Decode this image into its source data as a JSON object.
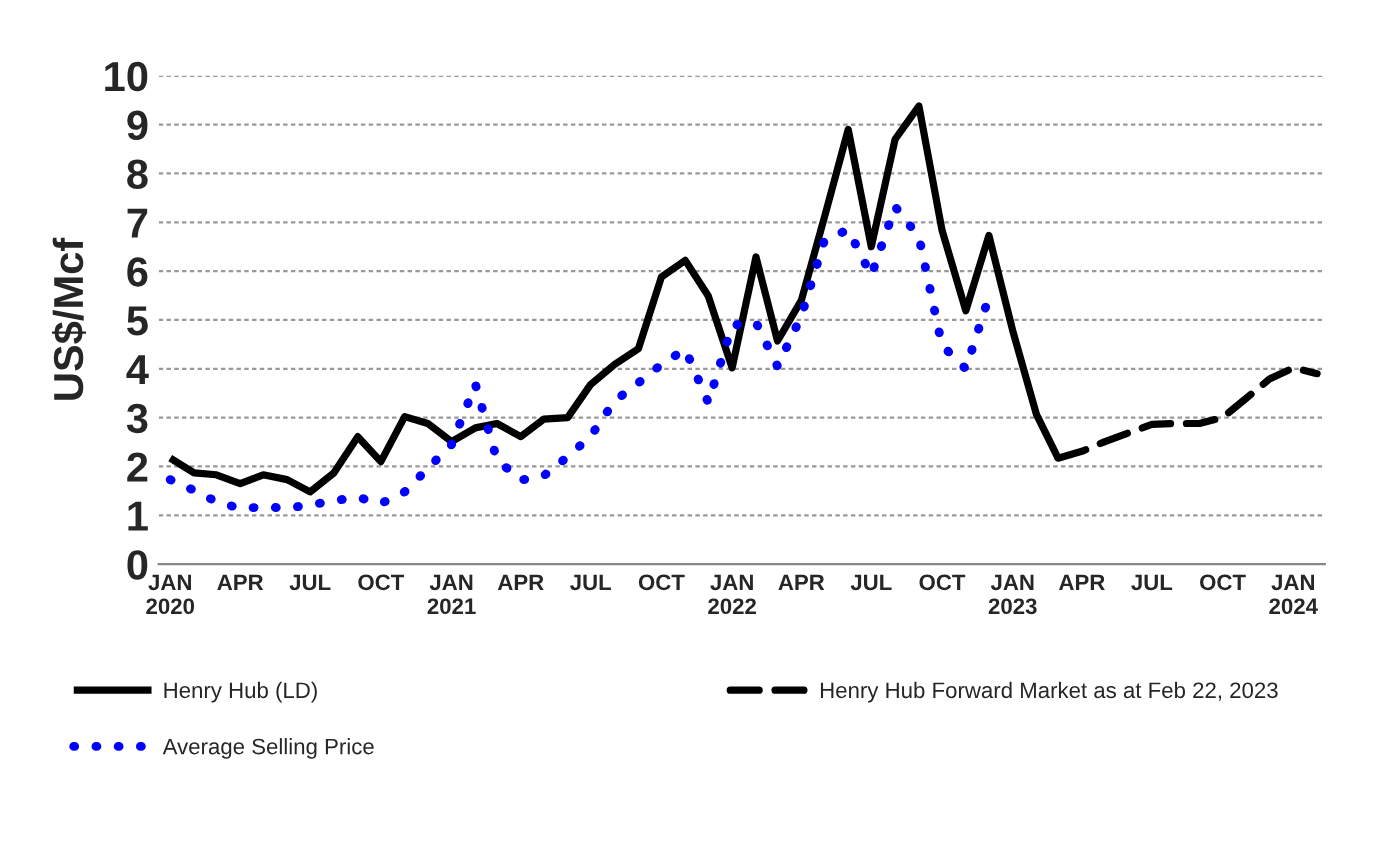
{
  "chart_data": {
    "type": "line",
    "ylabel": "US$/Mcf",
    "xlim": [
      "2019-12-17",
      "2024-02-11"
    ],
    "ylim": [
      0,
      10
    ],
    "yticks": [
      0,
      1,
      2,
      3,
      4,
      5,
      6,
      7,
      8,
      9,
      10
    ],
    "xticks": [
      {
        "value": "2020-01",
        "label": "JAN\n2020"
      },
      {
        "value": "2020-04",
        "label": "APR"
      },
      {
        "value": "2020-07",
        "label": "JUL"
      },
      {
        "value": "2020-10",
        "label": "OCT"
      },
      {
        "value": "2021-01",
        "label": "JAN\n2021"
      },
      {
        "value": "2021-04",
        "label": "APR"
      },
      {
        "value": "2021-07",
        "label": "JUL"
      },
      {
        "value": "2021-10",
        "label": "OCT"
      },
      {
        "value": "2022-01",
        "label": "JAN\n2022"
      },
      {
        "value": "2022-04",
        "label": "APR"
      },
      {
        "value": "2022-07",
        "label": "JUL"
      },
      {
        "value": "2022-10",
        "label": "OCT"
      },
      {
        "value": "2023-01",
        "label": "JAN\n2023"
      },
      {
        "value": "2023-04",
        "label": "APR"
      },
      {
        "value": "2023-07",
        "label": "JUL"
      },
      {
        "value": "2023-10",
        "label": "OCT"
      },
      {
        "value": "2024-01",
        "label": "JAN\n2024"
      }
    ],
    "grid": "y",
    "legend": "bottom",
    "marker": "none",
    "series": [
      {
        "name": "Henry Hub (LD)",
        "color": "#000000",
        "line_style": "solid",
        "x": [
          "2020-01",
          "2020-02",
          "2020-03",
          "2020-04",
          "2020-05",
          "2020-06",
          "2020-07",
          "2020-08",
          "2020-09",
          "2020-10",
          "2020-11",
          "2020-12",
          "2021-01",
          "2021-02",
          "2021-03",
          "2021-04",
          "2021-05",
          "2021-06",
          "2021-07",
          "2021-08",
          "2021-09",
          "2021-10",
          "2021-11",
          "2021-12",
          "2022-01",
          "2022-02",
          "2022-03",
          "2022-04",
          "2022-05",
          "2022-06",
          "2022-07",
          "2022-08",
          "2022-09",
          "2022-10",
          "2022-11",
          "2022-12",
          "2023-01",
          "2023-02",
          "2023-03"
        ],
        "values": [
          2.17,
          1.87,
          1.83,
          1.65,
          1.83,
          1.73,
          1.48,
          1.87,
          2.61,
          2.1,
          3.02,
          2.88,
          2.51,
          2.79,
          2.88,
          2.61,
          2.97,
          3.0,
          3.68,
          4.09,
          4.41,
          5.88,
          6.22,
          5.49,
          4.02,
          6.29,
          4.57,
          5.4,
          7.1,
          8.9,
          6.5,
          8.7,
          9.38,
          6.84,
          5.19,
          6.73,
          4.78,
          3.06,
          2.17
        ]
      },
      {
        "name": "Average Selling Price",
        "color": "#0000ff",
        "line_style": "dotted",
        "x": [
          "2020-01",
          "2020-02",
          "2020-03",
          "2020-04",
          "2020-05",
          "2020-06",
          "2020-07",
          "2020-08",
          "2020-09",
          "2020-10",
          "2020-11",
          "2020-12",
          "2021-01",
          "2021-02",
          "2021-03",
          "2021-04",
          "2021-05",
          "2021-06",
          "2021-07",
          "2021-08",
          "2021-09",
          "2021-10",
          "2021-11",
          "2021-12",
          "2022-01",
          "2022-02",
          "2022-03",
          "2022-04",
          "2022-05",
          "2022-06",
          "2022-07",
          "2022-08",
          "2022-09",
          "2022-10",
          "2022-11",
          "2022-12"
        ],
        "values": [
          1.73,
          1.51,
          1.28,
          1.14,
          1.17,
          1.15,
          1.21,
          1.3,
          1.37,
          1.24,
          1.48,
          1.96,
          2.45,
          3.68,
          2.14,
          1.72,
          1.81,
          2.2,
          2.62,
          3.34,
          3.71,
          4.09,
          4.4,
          3.31,
          4.89,
          4.95,
          4.05,
          5.08,
          6.63,
          6.85,
          5.91,
          7.32,
          6.7,
          4.48,
          4.0,
          5.47
        ]
      },
      {
        "name": "Henry Hub Forward Market as at Feb 22, 2023",
        "color": "#000000",
        "line_style": "dashed",
        "x": [
          "2023-03",
          "2023-04",
          "2023-05",
          "2023-06",
          "2023-07",
          "2023-08",
          "2023-09",
          "2023-10",
          "2023-11",
          "2023-12",
          "2024-01",
          "2024-02"
        ],
        "values": [
          2.17,
          2.31,
          2.51,
          2.69,
          2.86,
          2.88,
          2.88,
          3.0,
          3.4,
          3.79,
          4.02,
          3.9
        ]
      }
    ]
  }
}
